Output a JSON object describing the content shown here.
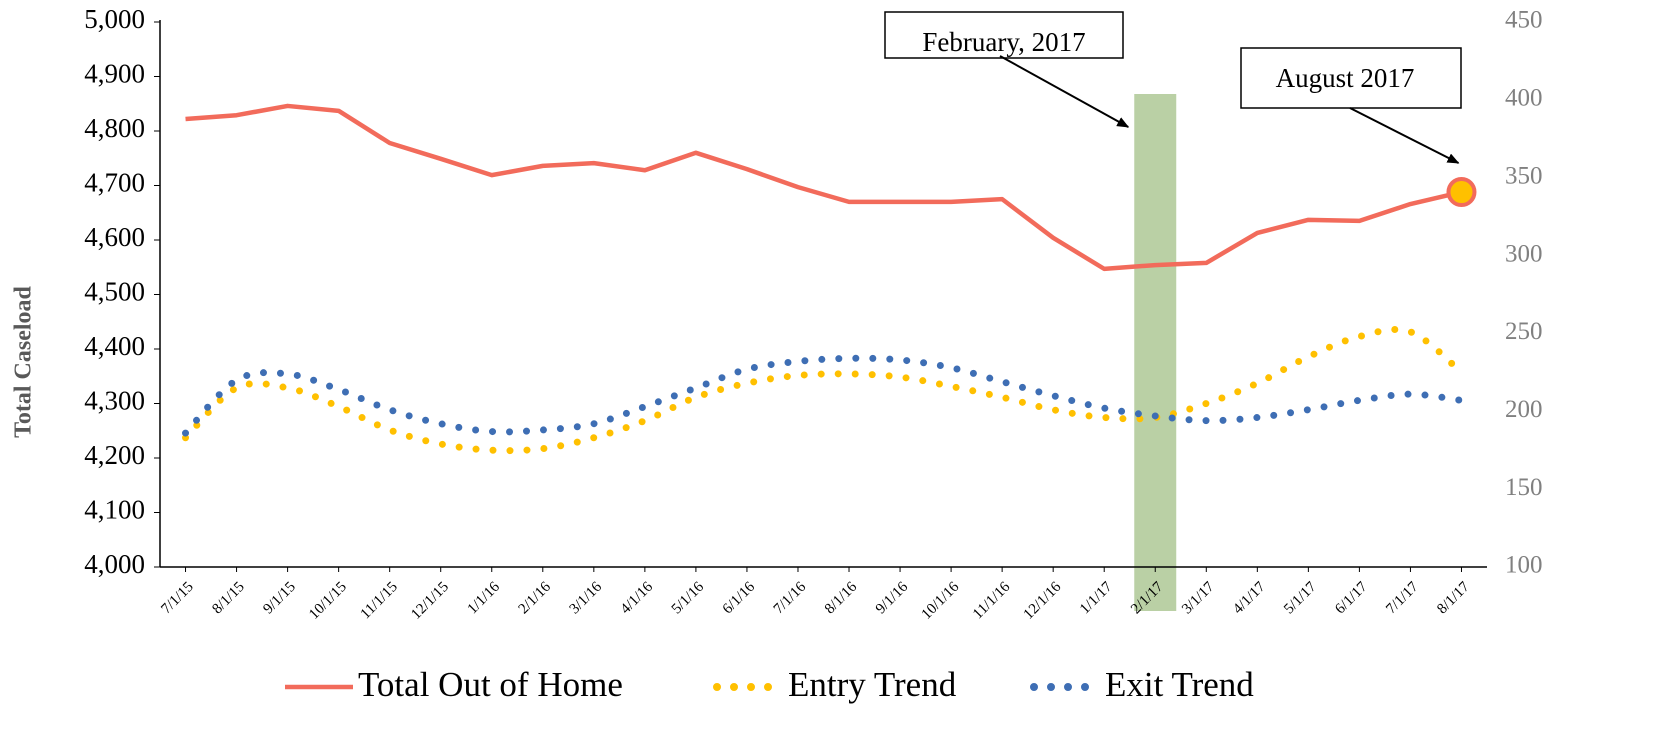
{
  "chart_data": {
    "type": "line",
    "y_label": "Total Caseload",
    "categories": [
      "7/1/15",
      "8/1/15",
      "9/1/15",
      "10/1/15",
      "11/1/15",
      "12/1/15",
      "1/1/16",
      "2/1/16",
      "3/1/16",
      "4/1/16",
      "5/1/16",
      "6/1/16",
      "7/1/16",
      "8/1/16",
      "9/1/16",
      "10/1/16",
      "11/1/16",
      "12/1/16",
      "1/1/17",
      "2/1/17",
      "3/1/17",
      "4/1/17",
      "5/1/17",
      "6/1/17",
      "7/1/17",
      "8/1/17"
    ],
    "series": [
      {
        "name": "Total Out of Home",
        "color": "#f26b5b",
        "style": "solid",
        "axis": "y",
        "values": [
          4822,
          4829,
          4846,
          4837,
          4778,
          4749,
          4719,
          4736,
          4741,
          4728,
          4760,
          4730,
          4697,
          4670,
          4670,
          4670,
          4675,
          4604,
          4547,
          4554,
          4558,
          4613,
          4637,
          4635,
          4666,
          4688
        ]
      },
      {
        "name": "Entry Trend",
        "color": "#ffc000",
        "style": "dotted",
        "axis": "y2",
        "values": [
          183,
          215,
          215,
          203,
          188,
          179,
          175,
          176,
          183,
          194,
          209,
          218,
          223,
          224,
          222,
          216,
          209,
          201,
          196,
          196,
          205,
          218,
          235,
          248,
          251,
          225
        ]
      },
      {
        "name": "Exit Trend",
        "color": "#3e6eb4",
        "style": "dotted",
        "axis": "y2",
        "values": [
          186,
          220,
          224,
          214,
          201,
          192,
          187,
          188,
          192,
          203,
          215,
          227,
          232,
          234,
          233,
          228,
          219,
          210,
          202,
          197,
          194,
          196,
          201,
          207,
          211,
          207
        ]
      }
    ],
    "ylim": [
      4000,
      5000
    ],
    "yticks": [
      {
        "value": 4000,
        "label": "4,000"
      },
      {
        "value": 4100,
        "label": "4,100"
      },
      {
        "value": 4200,
        "label": "4,200"
      },
      {
        "value": 4300,
        "label": "4,300"
      },
      {
        "value": 4400,
        "label": "4,400"
      },
      {
        "value": 4500,
        "label": "4,500"
      },
      {
        "value": 4600,
        "label": "4,600"
      },
      {
        "value": 4700,
        "label": "4,700"
      },
      {
        "value": 4800,
        "label": "4,800"
      },
      {
        "value": 4900,
        "label": "4,900"
      },
      {
        "value": 5000,
        "label": "5,000"
      }
    ],
    "y2lim": [
      100,
      450
    ],
    "y2ticks": [
      100,
      150,
      200,
      250,
      300,
      350,
      400,
      450
    ],
    "annotations": [
      {
        "text": "February, 2017",
        "x": "2/1/17"
      },
      {
        "text": "August 2017",
        "x": "8/1/17"
      }
    ],
    "legend": "bottom"
  }
}
